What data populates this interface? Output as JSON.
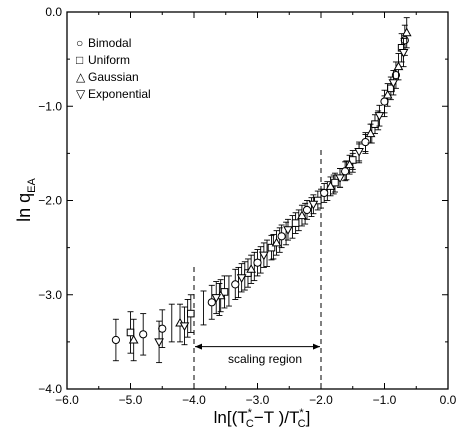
{
  "chart_data": {
    "type": "scatter",
    "xlabel": "ln[(T_C^*−T )/T_C^*]",
    "ylabel": "ln q_EA",
    "xlim": [
      -6.0,
      0.0
    ],
    "ylim": [
      -4.0,
      0.0
    ],
    "x_ticks": [
      "−6.0",
      "−5.0",
      "−4.0",
      "−3.0",
      "−2.0",
      "−1.0",
      "0.0"
    ],
    "y_ticks": [
      "−4.0",
      "−3.0",
      "−2.0",
      "−1.0",
      "0.0"
    ],
    "grid": false,
    "legend_position": "top-left",
    "series": [
      {
        "name": "Bimodal",
        "marker": "circle",
        "points": [
          [
            -5.23,
            -3.48,
            0.22
          ],
          [
            -4.8,
            -3.42,
            0.22
          ],
          [
            -4.5,
            -3.36,
            0.2
          ],
          [
            -3.72,
            -3.08,
            0.18
          ],
          [
            -3.35,
            -2.89,
            0.16
          ],
          [
            -3.0,
            -2.66,
            0.14
          ],
          [
            -2.62,
            -2.38,
            0.12
          ],
          [
            -2.22,
            -2.1,
            0.1
          ],
          [
            -1.95,
            -1.92,
            0.1
          ],
          [
            -1.62,
            -1.69,
            0.1
          ],
          [
            -1.3,
            -1.38,
            0.1
          ],
          [
            -1.0,
            -0.95,
            0.12
          ],
          [
            -0.82,
            -0.67,
            0.14
          ],
          [
            -0.68,
            -0.3,
            0.16
          ]
        ]
      },
      {
        "name": "Uniform",
        "marker": "square",
        "points": [
          [
            -5.0,
            -3.4,
            0.22
          ],
          [
            -4.05,
            -3.2,
            0.2
          ],
          [
            -3.52,
            -2.97,
            0.17
          ],
          [
            -3.15,
            -2.77,
            0.15
          ],
          [
            -2.78,
            -2.5,
            0.13
          ],
          [
            -2.4,
            -2.24,
            0.11
          ],
          [
            -2.05,
            -2.0,
            0.1
          ],
          [
            -1.78,
            -1.81,
            0.1
          ],
          [
            -1.5,
            -1.57,
            0.1
          ],
          [
            -1.15,
            -1.19,
            0.1
          ],
          [
            -0.9,
            -0.81,
            0.12
          ],
          [
            -0.73,
            -0.38,
            0.15
          ]
        ]
      },
      {
        "name": "Gaussian",
        "marker": "triangle-up",
        "points": [
          [
            -4.95,
            -3.48,
            0.22
          ],
          [
            -4.22,
            -3.3,
            0.2
          ],
          [
            -3.58,
            -3.01,
            0.17
          ],
          [
            -3.1,
            -2.73,
            0.15
          ],
          [
            -2.7,
            -2.45,
            0.13
          ],
          [
            -2.3,
            -2.16,
            0.11
          ],
          [
            -1.85,
            -1.85,
            0.1
          ],
          [
            -1.55,
            -1.62,
            0.1
          ],
          [
            -1.22,
            -1.29,
            0.1
          ],
          [
            -0.95,
            -0.88,
            0.12
          ],
          [
            -0.78,
            -0.58,
            0.14
          ],
          [
            -0.65,
            -0.22,
            0.16
          ]
        ]
      },
      {
        "name": "Exponential",
        "marker": "triangle-down",
        "points": [
          [
            -4.55,
            -3.5,
            0.22
          ],
          [
            -4.15,
            -3.33,
            0.2
          ],
          [
            -3.65,
            -3.03,
            0.17
          ],
          [
            -3.25,
            -2.82,
            0.15
          ],
          [
            -2.9,
            -2.58,
            0.13
          ],
          [
            -2.52,
            -2.31,
            0.11
          ],
          [
            -2.12,
            -2.04,
            0.1
          ],
          [
            -1.7,
            -1.76,
            0.1
          ],
          [
            -1.4,
            -1.48,
            0.1
          ],
          [
            -1.08,
            -1.1,
            0.11
          ],
          [
            -0.86,
            -0.75,
            0.13
          ],
          [
            -0.7,
            -0.43,
            0.15
          ]
        ]
      }
    ],
    "dense_points": [
      [
        -4.35,
        -3.3,
        0.2
      ],
      [
        -4.1,
        -3.25,
        0.2
      ],
      [
        -3.85,
        -3.14,
        0.18
      ],
      [
        -3.6,
        -3.05,
        0.17
      ],
      [
        -3.45,
        -2.96,
        0.16
      ],
      [
        -3.3,
        -2.87,
        0.16
      ],
      [
        -3.2,
        -2.8,
        0.15
      ],
      [
        -3.05,
        -2.7,
        0.15
      ],
      [
        -2.95,
        -2.63,
        0.14
      ],
      [
        -2.85,
        -2.56,
        0.14
      ],
      [
        -2.75,
        -2.49,
        0.13
      ],
      [
        -2.65,
        -2.42,
        0.13
      ],
      [
        -2.55,
        -2.35,
        0.12
      ],
      [
        -2.45,
        -2.28,
        0.12
      ],
      [
        -2.35,
        -2.21,
        0.11
      ],
      [
        -2.25,
        -2.14,
        0.11
      ],
      [
        -2.15,
        -2.07,
        0.1
      ],
      [
        -2.0,
        -1.98,
        0.1
      ],
      [
        -1.9,
        -1.9,
        0.1
      ],
      [
        -1.8,
        -1.83,
        0.1
      ],
      [
        -1.7,
        -1.76,
        0.1
      ],
      [
        -1.6,
        -1.68,
        0.1
      ],
      [
        -1.5,
        -1.6,
        0.1
      ],
      [
        -1.4,
        -1.5,
        0.1
      ],
      [
        -1.3,
        -1.4,
        0.1
      ],
      [
        -1.2,
        -1.29,
        0.1
      ],
      [
        -1.1,
        -1.15,
        0.1
      ],
      [
        -1.0,
        -1.0,
        0.11
      ]
    ],
    "annotations": [
      {
        "type": "vline",
        "x": -4.0,
        "y_from": -4.0,
        "y_to": -2.7
      },
      {
        "type": "vline",
        "x": -2.0,
        "y_from": -4.0,
        "y_to": -1.45
      },
      {
        "type": "double-arrow",
        "x_from": -4.0,
        "x_to": -2.0,
        "y": -3.55,
        "label": "scaling region"
      }
    ]
  },
  "legend": {
    "entries": [
      {
        "symbol": "○",
        "label": "Bimodal"
      },
      {
        "symbol": "□",
        "label": "Uniform"
      },
      {
        "symbol": "△",
        "label": "Gaussian"
      },
      {
        "symbol": "▽",
        "label": "Exponential"
      }
    ]
  },
  "labels": {
    "annotation": "scaling region",
    "y_main": "ln q",
    "y_sub": "EA",
    "x_pre": "ln[(T",
    "x_c1": "C",
    "x_mid": "−T )/T",
    "x_c2": "C",
    "x_post": "]",
    "star": "*"
  }
}
